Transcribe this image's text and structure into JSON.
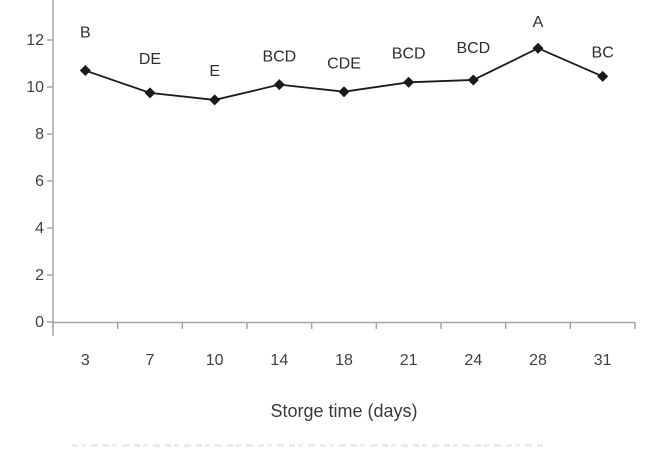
{
  "chart_data": {
    "type": "line",
    "title": "",
    "xlabel": "Storge time (days)",
    "ylabel": "",
    "categories": [
      "3",
      "7",
      "10",
      "14",
      "18",
      "21",
      "24",
      "28",
      "31"
    ],
    "series": [
      {
        "name": "",
        "values": [
          10.7,
          9.75,
          9.45,
          10.1,
          9.8,
          10.2,
          10.3,
          11.65,
          10.45
        ]
      }
    ],
    "point_labels": [
      "B",
      "DE",
      "E",
      "BCD",
      "CDE",
      "BCD",
      "BCD",
      "A",
      "BC"
    ],
    "yticks": [
      0,
      2,
      4,
      6,
      8,
      10,
      12
    ],
    "ylim": [
      0,
      13.7
    ],
    "grid": false,
    "legend_position": "none",
    "marker": "filled-diamond",
    "colors": {
      "line": "#1a1a1a",
      "marker": "#1a1a1a",
      "axis": "#a6a6a6",
      "tick_text": "#404040",
      "point_label_text": "#2e2e2e"
    }
  }
}
